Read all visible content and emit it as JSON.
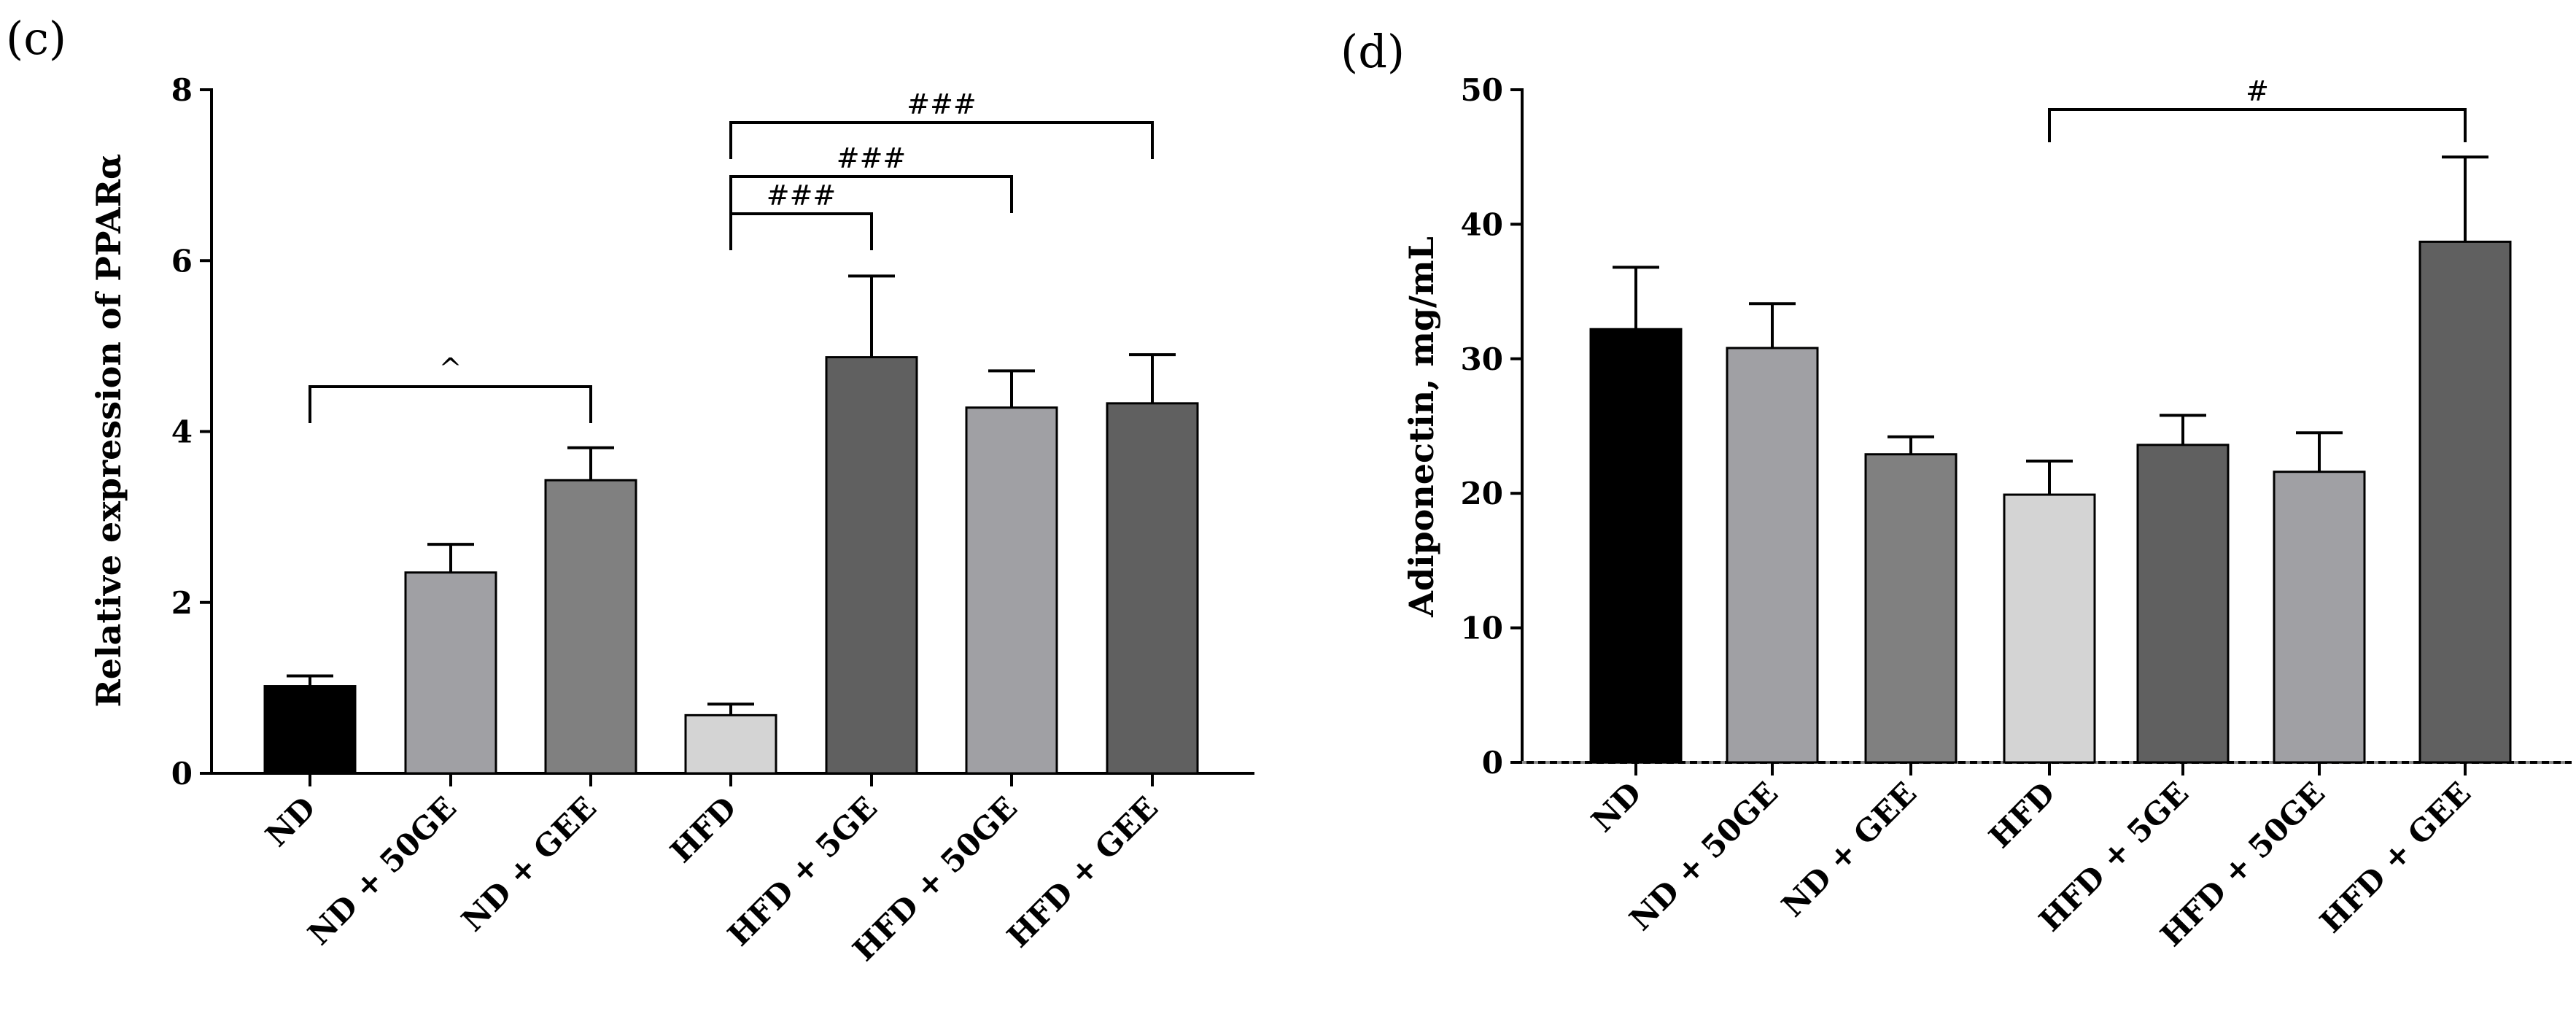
{
  "chart_data": [
    {
      "type": "bar",
      "panel_label": "(c)",
      "title": "",
      "xlabel": "",
      "ylabel": "Relative expression of PPARα",
      "ylim": [
        0,
        8
      ],
      "yticks": [
        0,
        2,
        4,
        6,
        8
      ],
      "categories": [
        "ND",
        "ND + 50GE",
        "ND + GEE",
        "HFD",
        "HFD + 5GE",
        "HFD + 50GE",
        "HFD + GEE"
      ],
      "values": [
        1.02,
        2.35,
        3.43,
        0.68,
        4.87,
        4.28,
        4.33
      ],
      "errors": [
        0.12,
        0.33,
        0.38,
        0.13,
        0.95,
        0.43,
        0.57
      ],
      "colors": [
        "#000000",
        "#a0a0a4",
        "#808080",
        "#d4d4d4",
        "#606060",
        "#a0a0a4",
        "#606060"
      ],
      "significance": [
        {
          "from": 0,
          "to": 2,
          "label": "^"
        },
        {
          "from": 3,
          "to": 4,
          "label": "###"
        },
        {
          "from": 3,
          "to": 5,
          "label": "###"
        },
        {
          "from": 3,
          "to": 6,
          "label": "###"
        }
      ]
    },
    {
      "type": "bar",
      "panel_label": "(d)",
      "title": "",
      "xlabel": "",
      "ylabel": "Adiponectin, mg/mL",
      "ylim": [
        0,
        50
      ],
      "yticks": [
        0,
        10,
        20,
        30,
        40,
        50
      ],
      "categories": [
        "ND",
        "ND + 50GE",
        "ND + GEE",
        "HFD",
        "HFD + 5GE",
        "HFD + 50GE",
        "HFD + GEE"
      ],
      "values": [
        32.2,
        30.8,
        22.9,
        19.9,
        23.6,
        21.6,
        38.7
      ],
      "errors": [
        4.6,
        3.3,
        1.3,
        2.5,
        2.2,
        2.9,
        6.3
      ],
      "colors": [
        "#000000",
        "#a0a0a4",
        "#808080",
        "#d4d4d4",
        "#606060",
        "#a0a0a4",
        "#606060"
      ],
      "significance": [
        {
          "from": 3,
          "to": 6,
          "label": "#"
        }
      ]
    }
  ]
}
